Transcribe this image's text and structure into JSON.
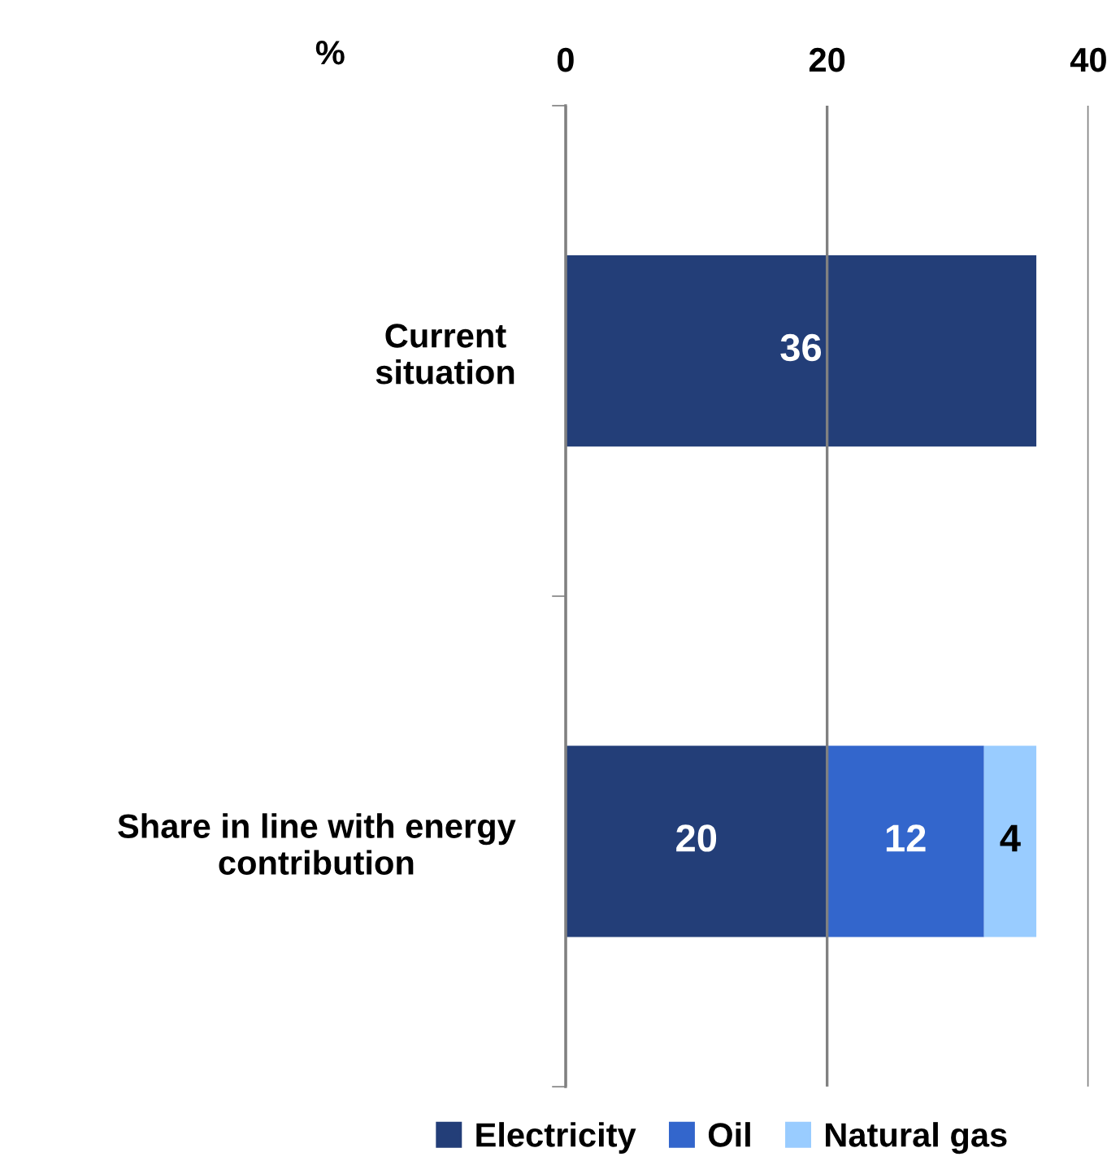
{
  "chart_data": {
    "type": "bar",
    "orientation": "horizontal",
    "stacked": true,
    "xlabel": "%",
    "categories": [
      "Current\nsituation",
      "Share in line with energy\ncontribution"
    ],
    "series": [
      {
        "name": "Electricity",
        "color": "#233e78",
        "values": [
          36,
          20
        ]
      },
      {
        "name": "Oil",
        "color": "#3366cc",
        "values": [
          null,
          12
        ]
      },
      {
        "name": "Natural gas",
        "color": "#99ccff",
        "values": [
          null,
          4
        ]
      }
    ],
    "xlim": [
      0,
      40
    ],
    "xticks": [
      0,
      20,
      40
    ],
    "grid": "x",
    "data_labels": true,
    "legend": "bottom"
  }
}
